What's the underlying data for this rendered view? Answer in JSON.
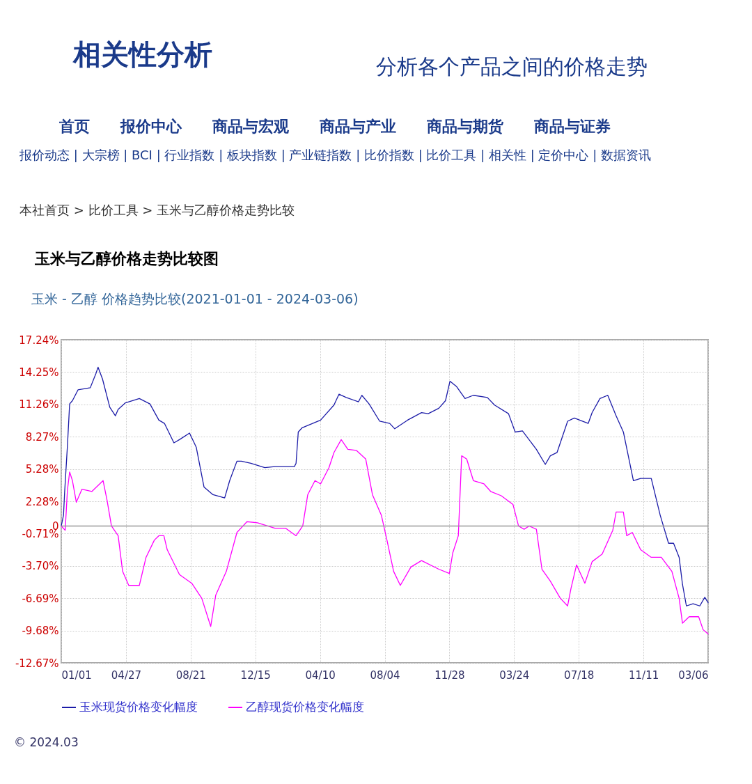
{
  "chart_data": {
    "type": "line",
    "title": "玉米与乙醇价格走势比较图",
    "subtitle": "玉米 - 乙醇 价格趋势比较(2021-01-01 - 2024-03-06)",
    "annotations": [
      "相关性分析",
      "分析各个产品之间的价格走势",
      "首页　　报价中心　　商品与宏观　　商品与产业　　商品与期货　　商品与证券",
      "报价动态 | 大宗榜 | BCI | 行业指数 | 板块指数 | 产业链指数 | 比价指数 | 比价工具 | 相关性 | 定价中心 | 数据资讯",
      "本社首页 > 比价工具 > 玉米与乙醇价格走势比较",
      "© 2024.03"
    ],
    "xlim": [
      "2021-01-01",
      "2024-03-06"
    ],
    "xticks": [
      {
        "value": "2021-01-01",
        "label": "01/01"
      },
      {
        "value": "2021-04-27",
        "label": "04/27"
      },
      {
        "value": "2021-08-21",
        "label": "08/21"
      },
      {
        "value": "2021-12-15",
        "label": "12/15"
      },
      {
        "value": "2022-04-10",
        "label": "04/10"
      },
      {
        "value": "2022-08-04",
        "label": "08/04"
      },
      {
        "value": "2022-11-28",
        "label": "11/28"
      },
      {
        "value": "2023-03-24",
        "label": "03/24"
      },
      {
        "value": "2023-07-18",
        "label": "07/18"
      },
      {
        "value": "2023-11-11",
        "label": "11/11"
      },
      {
        "value": "2024-03-06",
        "label": "03/06"
      }
    ],
    "ylim": [
      -12.67,
      17.24
    ],
    "yticks": [
      {
        "value": 17.24,
        "label": "17.24%"
      },
      {
        "value": 14.25,
        "label": "14.25%"
      },
      {
        "value": 11.26,
        "label": "11.26%"
      },
      {
        "value": 8.27,
        "label": "8.27%"
      },
      {
        "value": 5.28,
        "label": "5.28%"
      },
      {
        "value": 2.28,
        "label": "2.28%"
      },
      {
        "value": 0,
        "label": "0"
      },
      {
        "value": -0.71,
        "label": "-0.71%"
      },
      {
        "value": -3.7,
        "label": "-3.70%"
      },
      {
        "value": -6.69,
        "label": "-6.69%"
      },
      {
        "value": -9.68,
        "label": "-9.68%"
      },
      {
        "value": -12.67,
        "label": "-12.67%"
      }
    ],
    "grid": true,
    "legend": "bottom",
    "line_style": "solid",
    "marker": "none",
    "ref_lines": [
      {
        "axis": "y",
        "value": 0,
        "color": "#999999"
      }
    ],
    "series": [
      {
        "name": "玉米现货价格变化幅度",
        "color": "#1c1ca8",
        "x": [
          "2021-01-01",
          "2021-01-05",
          "2021-01-07",
          "2021-01-12",
          "2021-01-16",
          "2021-01-21",
          "2021-01-31",
          "2021-02-22",
          "2021-03-04",
          "2021-03-08",
          "2021-03-16",
          "2021-03-29",
          "2021-04-08",
          "2021-04-13",
          "2021-04-26",
          "2021-05-21",
          "2021-06-09",
          "2021-06-25",
          "2021-07-05",
          "2021-07-22",
          "2021-08-01",
          "2021-08-19",
          "2021-08-31",
          "2021-09-14",
          "2021-09-30",
          "2021-10-21",
          "2021-10-30",
          "2021-11-12",
          "2021-11-20",
          "2021-12-07",
          "2022-01-01",
          "2022-01-19",
          "2022-02-23",
          "2022-02-26",
          "2022-03-02",
          "2022-03-09",
          "2022-04-11",
          "2022-05-05",
          "2022-05-14",
          "2022-05-27",
          "2022-06-18",
          "2022-06-24",
          "2022-07-07",
          "2022-07-26",
          "2022-08-13",
          "2022-08-22",
          "2022-09-14",
          "2022-10-09",
          "2022-10-21",
          "2022-11-09",
          "2022-11-21",
          "2022-11-29",
          "2022-12-11",
          "2022-12-26",
          "2023-01-10",
          "2023-02-04",
          "2023-02-17",
          "2023-03-14",
          "2023-03-26",
          "2023-04-08",
          "2023-05-03",
          "2023-05-19",
          "2023-05-28",
          "2023-06-09",
          "2023-06-28",
          "2023-07-10",
          "2023-08-04",
          "2023-08-11",
          "2023-08-25",
          "2023-09-08",
          "2023-09-23",
          "2023-10-06",
          "2023-10-24",
          "2023-11-06",
          "2023-11-25",
          "2023-12-11",
          "2023-12-26",
          "2024-01-04",
          "2024-01-14",
          "2024-01-20",
          "2024-01-27",
          "2024-02-08",
          "2024-02-20",
          "2024-02-29",
          "2024-03-06"
        ],
        "values": [
          0,
          1.0,
          3.1,
          7.4,
          11.3,
          11.6,
          12.6,
          12.8,
          14.1,
          14.7,
          13.6,
          11.0,
          10.2,
          10.8,
          11.4,
          11.8,
          11.3,
          9.8,
          9.5,
          7.7,
          8.0,
          8.6,
          7.3,
          3.6,
          2.9,
          2.6,
          4.2,
          6.0,
          6.0,
          5.8,
          5.4,
          5.5,
          5.5,
          5.8,
          8.7,
          9.1,
          9.8,
          11.2,
          12.2,
          11.9,
          11.5,
          12.1,
          11.3,
          9.7,
          9.5,
          9.0,
          9.8,
          10.5,
          10.4,
          10.9,
          11.6,
          13.4,
          12.9,
          11.8,
          12.1,
          11.9,
          11.2,
          10.4,
          8.7,
          8.8,
          7.1,
          5.7,
          6.5,
          6.8,
          9.7,
          10.0,
          9.5,
          10.5,
          11.8,
          12.1,
          10.2,
          8.7,
          4.2,
          4.4,
          4.4,
          1.0,
          -1.6,
          -1.6,
          -2.9,
          -5.4,
          -7.4,
          -7.2,
          -7.4,
          -6.6,
          -7.1
        ]
      },
      {
        "name": "乙醇现货价格变化幅度",
        "color": "#ff00ff",
        "x": [
          "2021-01-01",
          "2021-01-08",
          "2021-01-12",
          "2021-01-16",
          "2021-01-21",
          "2021-01-28",
          "2021-02-07",
          "2021-02-25",
          "2021-03-07",
          "2021-03-17",
          "2021-03-24",
          "2021-04-01",
          "2021-04-13",
          "2021-04-21",
          "2021-05-02",
          "2021-05-21",
          "2021-06-02",
          "2021-06-17",
          "2021-06-25",
          "2021-07-04",
          "2021-07-10",
          "2021-08-01",
          "2021-08-23",
          "2021-09-10",
          "2021-09-26",
          "2021-10-05",
          "2021-10-24",
          "2021-11-12",
          "2021-11-30",
          "2021-12-19",
          "2022-01-19",
          "2022-02-07",
          "2022-02-26",
          "2022-03-10",
          "2022-03-19",
          "2022-04-01",
          "2022-04-11",
          "2022-04-26",
          "2022-05-05",
          "2022-05-18",
          "2022-05-30",
          "2022-06-14",
          "2022-07-01",
          "2022-07-13",
          "2022-07-29",
          "2022-08-08",
          "2022-08-20",
          "2022-09-01",
          "2022-09-20",
          "2022-10-09",
          "2022-11-09",
          "2022-11-28",
          "2022-12-04",
          "2022-12-14",
          "2022-12-20",
          "2022-12-29",
          "2023-01-10",
          "2023-01-29",
          "2023-02-10",
          "2023-03-01",
          "2023-03-22",
          "2023-04-01",
          "2023-04-11",
          "2023-04-20",
          "2023-05-03",
          "2023-05-13",
          "2023-05-28",
          "2023-06-15",
          "2023-06-28",
          "2023-07-04",
          "2023-07-14",
          "2023-07-29",
          "2023-08-11",
          "2023-08-29",
          "2023-09-17",
          "2023-09-23",
          "2023-10-06",
          "2023-10-12",
          "2023-10-22",
          "2023-11-06",
          "2023-11-25",
          "2023-12-13",
          "2024-01-01",
          "2024-01-14",
          "2024-01-20",
          "2024-02-01",
          "2024-02-18",
          "2024-02-26",
          "2024-03-06"
        ],
        "values": [
          0,
          -0.4,
          3.3,
          5.0,
          4.2,
          2.2,
          3.4,
          3.2,
          3.7,
          4.2,
          2.4,
          0,
          -0.9,
          -4.2,
          -5.5,
          -5.5,
          -2.9,
          -1.3,
          -0.9,
          -0.9,
          -2.2,
          -4.5,
          -5.3,
          -6.7,
          -9.3,
          -6.4,
          -4.2,
          -0.6,
          0.4,
          0.3,
          -0.2,
          -0.2,
          -0.9,
          0,
          2.9,
          4.2,
          3.9,
          5.4,
          6.8,
          8.0,
          7.1,
          7.0,
          6.2,
          2.9,
          1.0,
          -1.3,
          -4.2,
          -5.5,
          -3.8,
          -3.2,
          -4.0,
          -4.4,
          -2.5,
          -0.9,
          6.5,
          6.2,
          4.2,
          3.9,
          3.2,
          2.8,
          2.0,
          0,
          -0.3,
          0,
          -0.3,
          -4.0,
          -5.1,
          -6.7,
          -7.4,
          -5.8,
          -3.6,
          -5.3,
          -3.3,
          -2.6,
          -0.4,
          1.3,
          1.3,
          -0.9,
          -0.6,
          -2.2,
          -2.9,
          -2.9,
          -4.2,
          -6.7,
          -9.0,
          -8.4,
          -8.4,
          -9.6,
          -10.0
        ]
      }
    ]
  }
}
